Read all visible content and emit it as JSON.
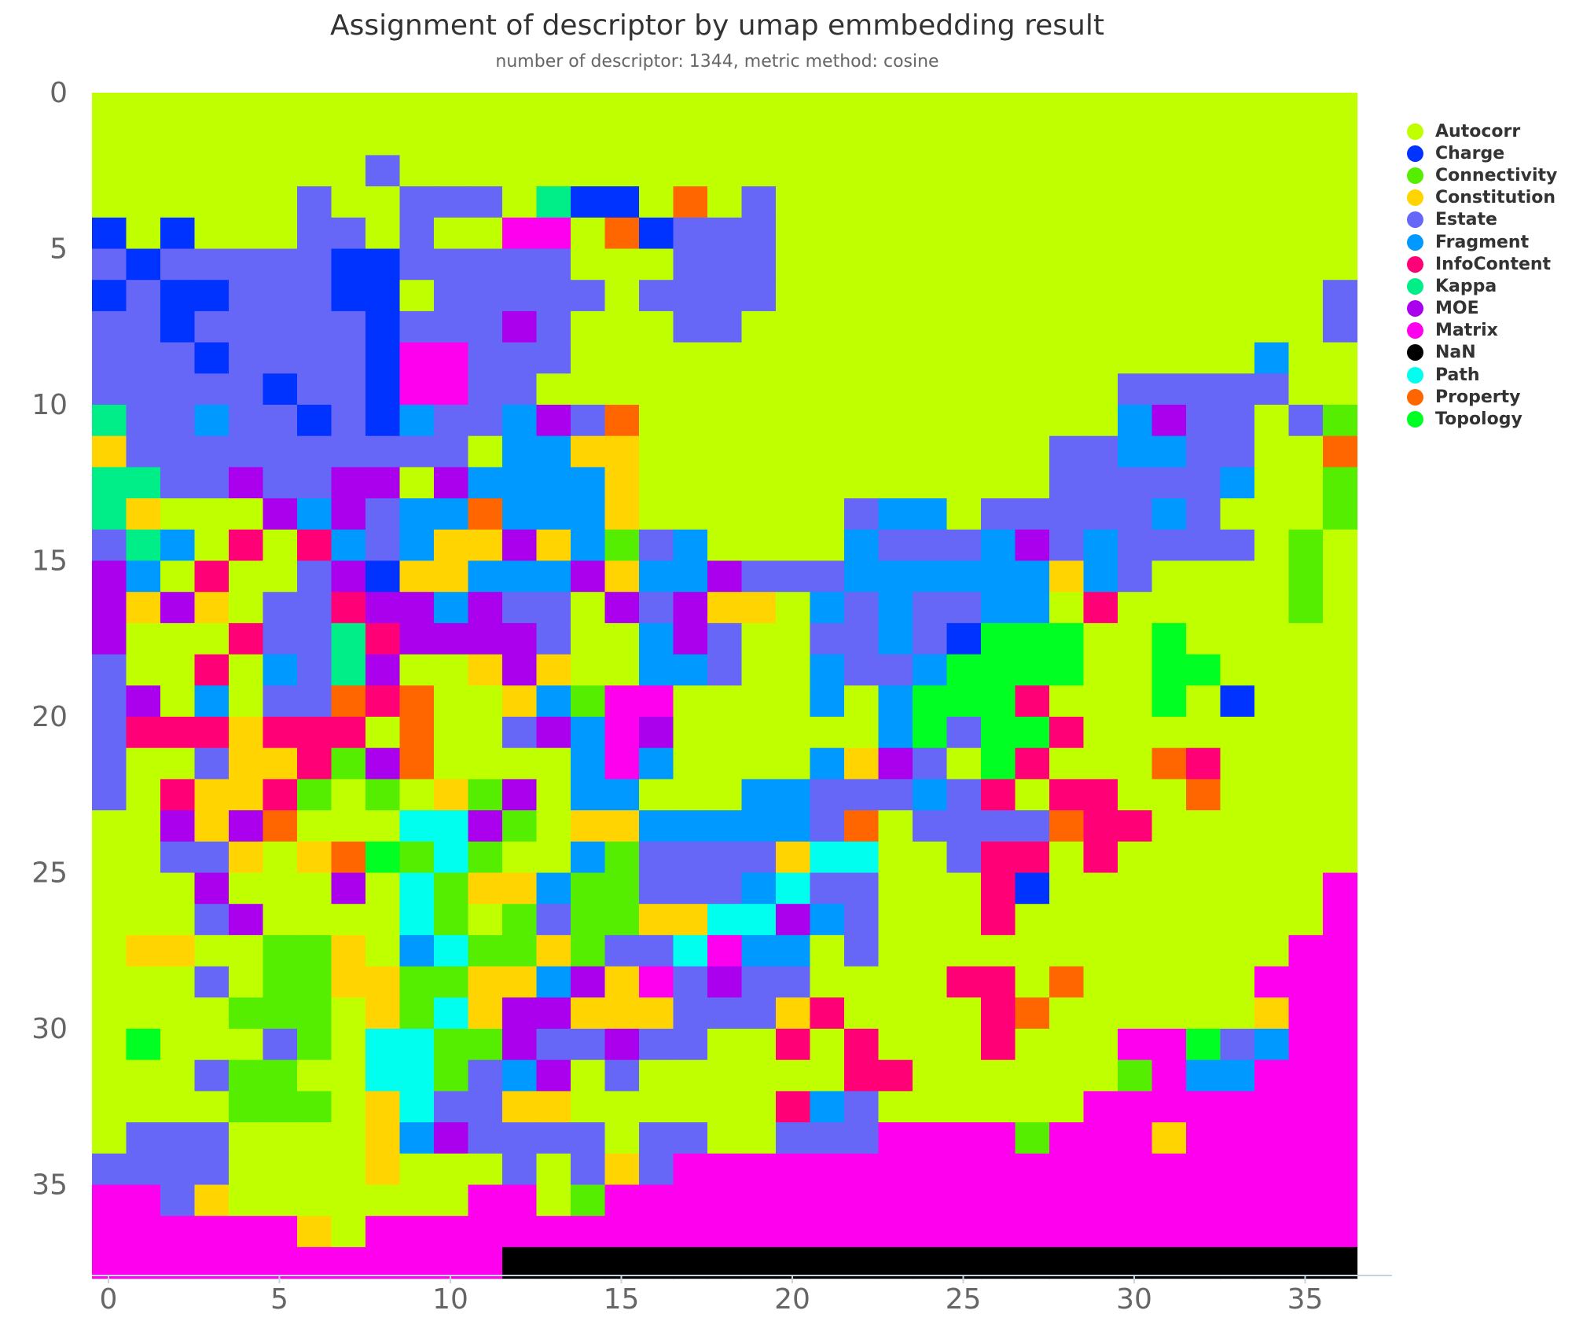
{
  "chart_data": {
    "type": "heatmap",
    "title": "Assignment of descriptor by umap emmbedding result",
    "subtitle": "number of descriptor: 1344, metric method: cosine",
    "xlabel": "",
    "ylabel": "",
    "xlim": [
      -0.5,
      36.5
    ],
    "ylim": [
      0,
      36.5
    ],
    "x_ticks": [
      "0",
      "5",
      "10",
      "15",
      "20",
      "25",
      "30",
      "35"
    ],
    "y_ticks": [
      "0",
      "5",
      "10",
      "15",
      "20",
      "25",
      "30",
      "35"
    ],
    "grid": false,
    "legend_position": "right",
    "categories": [
      {
        "name": "Autocorr",
        "color": "#c0ff00"
      },
      {
        "name": "Charge",
        "color": "#0033ff"
      },
      {
        "name": "Connectivity",
        "color": "#55ee00"
      },
      {
        "name": "Constitution",
        "color": "#ffd400"
      },
      {
        "name": "Estate",
        "color": "#6666f7"
      },
      {
        "name": "Fragment",
        "color": "#0099ff"
      },
      {
        "name": "InfoContent",
        "color": "#ff0077"
      },
      {
        "name": "Kappa",
        "color": "#00ee88"
      },
      {
        "name": "MOE",
        "color": "#aa00ee"
      },
      {
        "name": "Matrix",
        "color": "#ff00ee"
      },
      {
        "name": "NaN",
        "color": "#000000"
      },
      {
        "name": "Path",
        "color": "#00ffee"
      },
      {
        "name": "Property",
        "color": "#ff6600"
      },
      {
        "name": "Topology",
        "color": "#00ff22"
      }
    ],
    "key": {
      "A": "Autocorr",
      "C": "Charge",
      "G": "Connectivity",
      "U": "Constitution",
      "E": "Estate",
      "F": "Fragment",
      "I": "InfoContent",
      "K": "Kappa",
      "M": "MOE",
      "X": "Matrix",
      "N": "NaN",
      "P": "Path",
      "R": "Property",
      "T": "Topology"
    },
    "grid_rows": [
      "AAAAAAAAAAAAAAAAAAAAAAAAAAAAAAAAAAAAA",
      "AAAAAAAAAAAAAAAAAAAAAAAAAAAAAAAAAAAAA",
      "AAAAAAAAEAAAAAAAAAAAAAAAAAAAAAAAAAAAA",
      "AAAAAAEAAEEEAKCCARAEAAAAAAAAAAAAAAAAA",
      "CACAAAEEAEAAXXARCEEEAAAAAAAAAAAAAAAAA",
      "ECEEEEECCEEEEEAAAEEEAAAAAAAAAAAAAAAAA",
      "CECCEEECCAEEEEEAEEEEAAAAAAAAAAAAAAAAE",
      "EECEEEEECEEEMEAAAEEAAAAAAAAAAAAAAAAAE",
      "EEECEEEECXXEEEAAAAAAAAAAAAAAAAAAAAFAA",
      "EEEEECEECXXEEAAAAAAAAAAAAAAAAAEEEEEAA",
      "KEEFEECECFEEFMERAAAAAAAAAAAAAAFMEEAEG",
      "UEEEEEEEEEEAFFUUAAAAAAAAAAAAEEFFEEAAR",
      "KKEEMEEMMAMFFFFUAAAAAAAAAAAAEEEEEFAAG",
      "KUAAAMFMEFFRFFFUAAAAAAEFFAEEEEEFEAAAG",
      "EKFAIAIFEFUUMUFGEFAAAAFEEEFMEFEEEEAGA",
      "MFAIAAEMCUUFFFMUFFMEEEFFFFFFUFEAAAAGA",
      "MUMUAEEIMMFMEEAMEMUUAFEFEEFFAIAAAAAGA",
      "MAAAIEEKIMMMMEAAFMEAAEEFECTTTAATAAAAA",
      "EAAIAFEKMAAUMUAAFFEAAFEEFTTTTAATTAAAA",
      "EMAFAEERIRAAUFGXXAAAAFAFTTTIAAATACAAA",
      "EIIIUIIIARAAEMFXMAAAAAAFTETTIAAAAAAAA",
      "EAAEUUIGMRAAAAFXFAAAAFUMEATIAAARIAAAA",
      "EAIUUIGAGAUGMAFFAAAFFEEEFEIAIIAARAAAA",
      "AAMUMRAAAPPMGAUUFFFFFERAEEEERIIAAAAAA",
      "AAEEUAURTGPGAAFGEEEEUPPAAEIIAIAAAAAAA",
      "AAAMAAAMAPGUUFGGEEEFPEEAAAICAAAAAAAAX",
      "AAAEMAAAAPGAGEGGUUPPMFEAAAIAAAAAAAAAX",
      "AUUAAGGUAFPGGUGEEPXFFAEAAAAAAAAAAAAXX",
      "AAAEAGGUUGGUUFMUXEMEEAAAAIIARAAAAAXXX",
      "AAAAGGGAUGPUMMUUUEEEUIAAAAIRAAAAAAUXX",
      "ATAAAEGAPPGGMEEMEEAAIAIAAAIAAAXXTEFXX",
      "AAAEGGAAPPGEFMAEAAAAAAIIAAAAAAGXFFXXX",
      "AAAAGGGAUPEEUUAAAAAAIFEAAAAAAXXXXXXXX",
      "AEEEAAAAUFMEEEEAEEAAEEEXXXXGXXXUXXXXX",
      "EEEEAAAAUAAAEAEUEXXXXXXXXXXXXXXXXXXXX",
      "XXEUAAAAAAAXXAGXXXXXXXXXXXXXXXXXXXXXX",
      "XXXXXXUAXXXXXXXXXXXXXXXXXXXXXXXXXXXXX",
      "XXXXXXXXXXXXNNNNNNNNNNNNNNNNNNNNNNNNN"
    ]
  }
}
